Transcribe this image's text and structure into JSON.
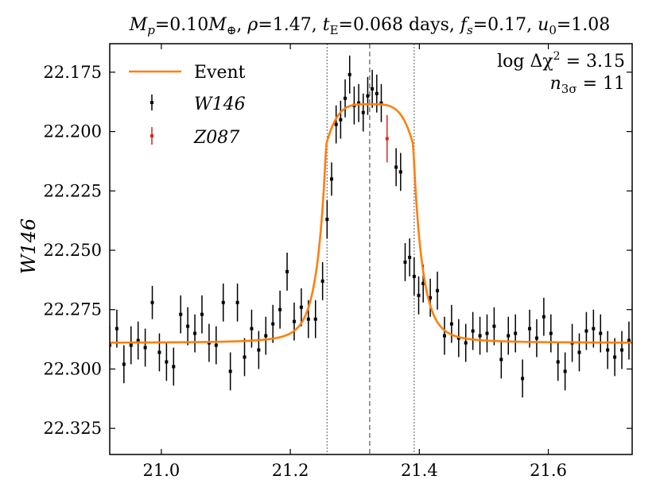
{
  "chart_data": {
    "type": "scatter",
    "title": "M_p=0.10M_⊕, ρ=1.47, t_E=0.068 days, f_s=0.17, u_0=1.08",
    "title_parts": {
      "mp_label": "M",
      "mp_sub": "p",
      "mp_value": "=0.10",
      "mp_unit": "M",
      "mp_unit_sub": "⊕",
      "rho_label": "ρ",
      "rho_value": "=1.47",
      "te_label": "t",
      "te_sub": "E",
      "te_value": "=0.068 days",
      "fs_label": "f",
      "fs_sub": "s",
      "fs_value": "=0.17",
      "u0_label": "u",
      "u0_sub": "0",
      "u0_value": "=1.08"
    },
    "xlabel": "",
    "ylabel": "W146",
    "xlim": [
      20.92,
      21.73
    ],
    "ylim": [
      22.336,
      22.163
    ],
    "y_inverted": true,
    "xticks": [
      21.0,
      21.2,
      21.4,
      21.6
    ],
    "xtick_labels": [
      "21.0",
      "21.2",
      "21.4",
      "21.6"
    ],
    "yticks": [
      22.175,
      22.2,
      22.225,
      22.25,
      22.275,
      22.3,
      22.325
    ],
    "ytick_labels": [
      "22.175",
      "22.200",
      "22.225",
      "22.250",
      "22.275",
      "22.300",
      "22.325"
    ],
    "vlines": [
      {
        "x": 21.257,
        "style": "dotted",
        "color": "#808080"
      },
      {
        "x": 21.323,
        "style": "dashed",
        "color": "#808080"
      },
      {
        "x": 21.392,
        "style": "dotted",
        "color": "#808080"
      }
    ],
    "legend": {
      "location": "top-left",
      "entries": [
        {
          "label": "Event",
          "kind": "line",
          "color": "#ff7f0e"
        },
        {
          "label": "W146",
          "kind": "errorbar",
          "color": "#000000"
        },
        {
          "label": "Z087",
          "kind": "errorbar",
          "color": "#d62728"
        }
      ]
    },
    "stats": {
      "location": "top-right",
      "line1": "log Δχ² = 3.15",
      "line1_parts": {
        "prefix": "log Δχ",
        "sup": "2",
        "suffix": " = 3.15"
      },
      "line2": "n_3σ = 11",
      "line2_parts": {
        "base": "n",
        "sub": "3σ",
        "suffix": " = 11"
      }
    },
    "model": {
      "name": "Event",
      "color": "#ff7f0e",
      "baseline": 22.289,
      "peak_mag": 22.1885,
      "t0": 21.323,
      "disk_half_width": 0.0675,
      "wing_amplitude": 0.0118,
      "wing_scale": 0.068
    },
    "series": [
      {
        "name": "W146",
        "color": "#000000",
        "x": [
          20.92,
          20.931,
          20.942,
          20.953,
          20.964,
          20.975,
          20.986,
          20.997,
          21.008,
          21.019,
          21.03,
          21.041,
          21.052,
          21.063,
          21.074,
          21.085,
          21.096,
          21.107,
          21.118,
          21.129,
          21.14,
          21.151,
          21.162,
          21.173,
          21.184,
          21.195,
          21.206,
          21.217,
          21.228,
          21.239,
          21.25,
          21.257,
          21.264,
          21.271,
          21.278,
          21.285,
          21.292,
          21.299,
          21.306,
          21.313,
          21.32,
          21.327,
          21.334,
          21.341,
          21.364,
          21.371,
          21.378,
          21.385,
          21.392,
          21.399,
          21.406,
          21.417,
          21.428,
          21.439,
          21.45,
          21.461,
          21.472,
          21.483,
          21.494,
          21.505,
          21.516,
          21.527,
          21.538,
          21.549,
          21.56,
          21.571,
          21.582,
          21.593,
          21.604,
          21.615,
          21.626,
          21.637,
          21.648,
          21.659,
          21.67,
          21.681,
          21.692,
          21.703,
          21.714,
          21.725
        ],
        "y": [
          22.29,
          22.283,
          22.298,
          22.29,
          22.288,
          22.291,
          22.272,
          22.293,
          22.297,
          22.299,
          22.277,
          22.282,
          22.285,
          22.277,
          22.289,
          22.29,
          22.272,
          22.301,
          22.272,
          22.295,
          22.283,
          22.292,
          22.286,
          22.281,
          22.275,
          22.259,
          22.28,
          22.274,
          22.279,
          22.279,
          22.263,
          22.237,
          22.22,
          22.197,
          22.195,
          22.186,
          22.176,
          22.189,
          22.188,
          22.192,
          22.185,
          22.182,
          22.184,
          22.188,
          22.215,
          22.217,
          22.255,
          22.253,
          22.261,
          22.269,
          22.264,
          22.27,
          22.267,
          22.286,
          22.281,
          22.287,
          22.289,
          22.284,
          22.286,
          22.285,
          22.282,
          22.296,
          22.286,
          22.285,
          22.304,
          22.283,
          22.287,
          22.278,
          22.285,
          22.297,
          22.301,
          22.289,
          22.293,
          22.284,
          22.283,
          22.285,
          22.292,
          22.295,
          22.292,
          22.288
        ],
        "err": [
          0.008,
          0.008,
          0.008,
          0.008,
          0.008,
          0.008,
          0.007,
          0.008,
          0.008,
          0.008,
          0.008,
          0.008,
          0.008,
          0.008,
          0.008,
          0.008,
          0.008,
          0.008,
          0.008,
          0.008,
          0.008,
          0.008,
          0.008,
          0.008,
          0.008,
          0.008,
          0.008,
          0.008,
          0.008,
          0.008,
          0.008,
          0.008,
          0.007,
          0.008,
          0.008,
          0.008,
          0.008,
          0.008,
          0.008,
          0.008,
          0.008,
          0.008,
          0.008,
          0.008,
          0.008,
          0.008,
          0.008,
          0.008,
          0.008,
          0.008,
          0.008,
          0.008,
          0.008,
          0.008,
          0.008,
          0.008,
          0.008,
          0.008,
          0.008,
          0.008,
          0.008,
          0.008,
          0.008,
          0.008,
          0.008,
          0.008,
          0.008,
          0.008,
          0.008,
          0.008,
          0.008,
          0.008,
          0.008,
          0.008,
          0.008,
          0.008,
          0.008,
          0.008,
          0.008,
          0.008
        ]
      },
      {
        "name": "Z087",
        "color": "#d62728",
        "x": [
          21.35
        ],
        "y": [
          22.203
        ],
        "err": [
          0.01
        ]
      }
    ]
  }
}
